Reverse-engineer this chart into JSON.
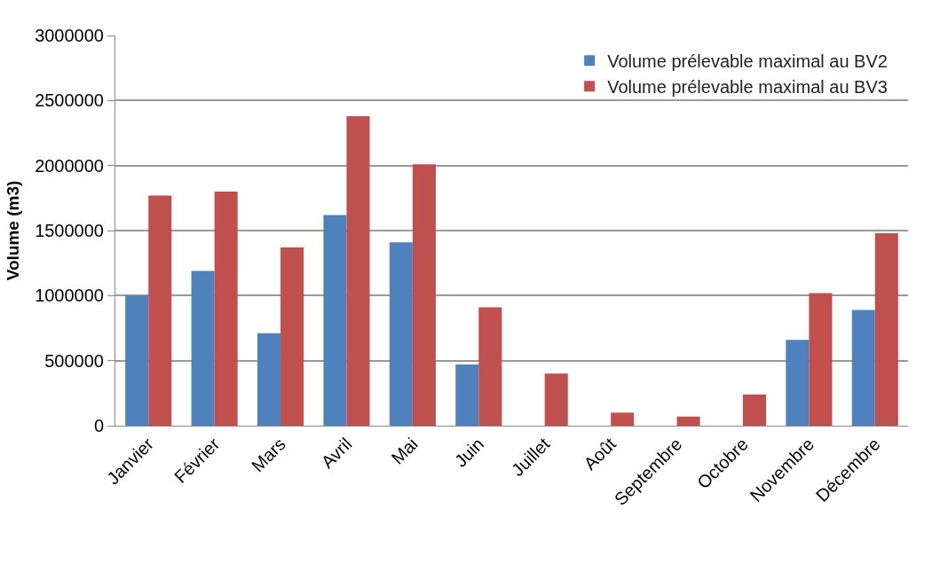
{
  "chart_data": {
    "type": "bar",
    "ylabel": "Volume (m3)",
    "categories": [
      "Janvier",
      "Février",
      "Mars",
      "Avril",
      "Mai",
      "Juin",
      "Juillet",
      "Août",
      "Septembre",
      "Octobre",
      "Novembre",
      "Décembre"
    ],
    "series": [
      {
        "name": "Volume prélevable maximal au BV2",
        "color": "#4f81bd",
        "values": [
          1000000,
          1190000,
          710000,
          1620000,
          1410000,
          470000,
          0,
          0,
          0,
          0,
          660000,
          890000
        ]
      },
      {
        "name": "Volume prélevable maximal au BV3",
        "color": "#c0504d",
        "values": [
          1770000,
          1800000,
          1370000,
          2380000,
          2010000,
          910000,
          400000,
          100000,
          70000,
          240000,
          1020000,
          1480000
        ]
      }
    ],
    "ylim": [
      0,
      3000000
    ],
    "yticks": [
      0,
      500000,
      1000000,
      1500000,
      2000000,
      2500000,
      3000000
    ],
    "grid": "y",
    "legend": "top right"
  }
}
